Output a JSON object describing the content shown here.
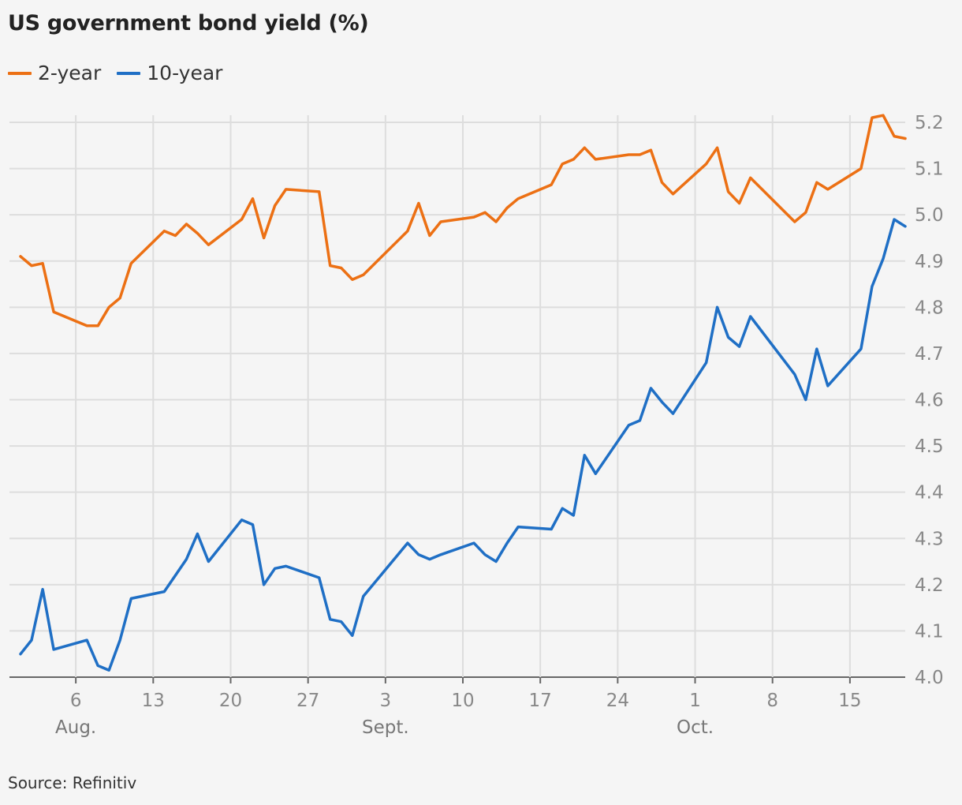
{
  "title": "US government bond yield (%)",
  "source": "Source: Refinitiv",
  "legend": [
    {
      "label": "2-year",
      "color": "#ec7014"
    },
    {
      "label": "10-year",
      "color": "#1f6fc5"
    }
  ],
  "chart_data": {
    "type": "line",
    "title": "US government bond yield (%)",
    "xlabel": "",
    "ylabel": "",
    "ylim": [
      4.0,
      5.2
    ],
    "y_ticks": [
      "4.0",
      "4.1",
      "4.2",
      "4.3",
      "4.4",
      "4.5",
      "4.6",
      "4.7",
      "4.8",
      "4.9",
      "5.0",
      "5.1",
      "5.2"
    ],
    "y_axis_position": "right",
    "grid": true,
    "legend_position": "top-left",
    "x_ticks": [
      {
        "date": "2023-08-06",
        "label": "6",
        "month": "Aug."
      },
      {
        "date": "2023-08-13",
        "label": "13",
        "month": ""
      },
      {
        "date": "2023-08-20",
        "label": "20",
        "month": ""
      },
      {
        "date": "2023-08-27",
        "label": "27",
        "month": ""
      },
      {
        "date": "2023-09-03",
        "label": "3",
        "month": "Sept."
      },
      {
        "date": "2023-09-10",
        "label": "10",
        "month": ""
      },
      {
        "date": "2023-09-17",
        "label": "17",
        "month": ""
      },
      {
        "date": "2023-09-24",
        "label": "24",
        "month": ""
      },
      {
        "date": "2023-10-01",
        "label": "1",
        "month": "Oct."
      },
      {
        "date": "2023-10-08",
        "label": "8",
        "month": ""
      },
      {
        "date": "2023-10-15",
        "label": "15",
        "month": ""
      }
    ],
    "xlim": [
      "2023-07-31",
      "2023-10-20"
    ],
    "series": [
      {
        "name": "2-year",
        "color": "#ec7014",
        "points": [
          [
            "2023-08-01",
            4.91
          ],
          [
            "2023-08-02",
            4.89
          ],
          [
            "2023-08-03",
            4.895
          ],
          [
            "2023-08-04",
            4.79
          ],
          [
            "2023-08-07",
            4.76
          ],
          [
            "2023-08-08",
            4.76
          ],
          [
            "2023-08-09",
            4.8
          ],
          [
            "2023-08-10",
            4.82
          ],
          [
            "2023-08-11",
            4.895
          ],
          [
            "2023-08-14",
            4.965
          ],
          [
            "2023-08-15",
            4.955
          ],
          [
            "2023-08-16",
            4.98
          ],
          [
            "2023-08-17",
            4.96
          ],
          [
            "2023-08-18",
            4.935
          ],
          [
            "2023-08-21",
            4.99
          ],
          [
            "2023-08-22",
            5.035
          ],
          [
            "2023-08-23",
            4.95
          ],
          [
            "2023-08-24",
            5.02
          ],
          [
            "2023-08-25",
            5.055
          ],
          [
            "2023-08-28",
            5.05
          ],
          [
            "2023-08-29",
            4.89
          ],
          [
            "2023-08-30",
            4.885
          ],
          [
            "2023-08-31",
            4.86
          ],
          [
            "2023-09-01",
            4.87
          ],
          [
            "2023-09-05",
            4.965
          ],
          [
            "2023-09-06",
            5.025
          ],
          [
            "2023-09-07",
            4.955
          ],
          [
            "2023-09-08",
            4.985
          ],
          [
            "2023-09-11",
            4.995
          ],
          [
            "2023-09-12",
            5.005
          ],
          [
            "2023-09-13",
            4.985
          ],
          [
            "2023-09-14",
            5.015
          ],
          [
            "2023-09-15",
            5.035
          ],
          [
            "2023-09-18",
            5.065
          ],
          [
            "2023-09-19",
            5.11
          ],
          [
            "2023-09-20",
            5.12
          ],
          [
            "2023-09-21",
            5.145
          ],
          [
            "2023-09-22",
            5.12
          ],
          [
            "2023-09-25",
            5.13
          ],
          [
            "2023-09-26",
            5.13
          ],
          [
            "2023-09-27",
            5.14
          ],
          [
            "2023-09-28",
            5.07
          ],
          [
            "2023-09-29",
            5.045
          ],
          [
            "2023-10-02",
            5.11
          ],
          [
            "2023-10-03",
            5.145
          ],
          [
            "2023-10-04",
            5.05
          ],
          [
            "2023-10-05",
            5.025
          ],
          [
            "2023-10-06",
            5.08
          ],
          [
            "2023-10-10",
            4.985
          ],
          [
            "2023-10-11",
            5.005
          ],
          [
            "2023-10-12",
            5.07
          ],
          [
            "2023-10-13",
            5.055
          ],
          [
            "2023-10-16",
            5.1
          ],
          [
            "2023-10-17",
            5.21
          ],
          [
            "2023-10-18",
            5.215
          ],
          [
            "2023-10-19",
            5.17
          ],
          [
            "2023-10-20",
            5.165
          ]
        ]
      },
      {
        "name": "10-year",
        "color": "#1f6fc5",
        "points": [
          [
            "2023-08-01",
            4.05
          ],
          [
            "2023-08-02",
            4.08
          ],
          [
            "2023-08-03",
            4.19
          ],
          [
            "2023-08-04",
            4.06
          ],
          [
            "2023-08-07",
            4.08
          ],
          [
            "2023-08-08",
            4.025
          ],
          [
            "2023-08-09",
            4.015
          ],
          [
            "2023-08-10",
            4.08
          ],
          [
            "2023-08-11",
            4.17
          ],
          [
            "2023-08-14",
            4.185
          ],
          [
            "2023-08-15",
            4.22
          ],
          [
            "2023-08-16",
            4.255
          ],
          [
            "2023-08-17",
            4.31
          ],
          [
            "2023-08-18",
            4.25
          ],
          [
            "2023-08-21",
            4.34
          ],
          [
            "2023-08-22",
            4.33
          ],
          [
            "2023-08-23",
            4.2
          ],
          [
            "2023-08-24",
            4.235
          ],
          [
            "2023-08-25",
            4.24
          ],
          [
            "2023-08-28",
            4.215
          ],
          [
            "2023-08-29",
            4.125
          ],
          [
            "2023-08-30",
            4.12
          ],
          [
            "2023-08-31",
            4.09
          ],
          [
            "2023-09-01",
            4.175
          ],
          [
            "2023-09-05",
            4.29
          ],
          [
            "2023-09-06",
            4.265
          ],
          [
            "2023-09-07",
            4.255
          ],
          [
            "2023-09-08",
            4.265
          ],
          [
            "2023-09-11",
            4.29
          ],
          [
            "2023-09-12",
            4.265
          ],
          [
            "2023-09-13",
            4.25
          ],
          [
            "2023-09-14",
            4.29
          ],
          [
            "2023-09-15",
            4.325
          ],
          [
            "2023-09-18",
            4.32
          ],
          [
            "2023-09-19",
            4.365
          ],
          [
            "2023-09-20",
            4.35
          ],
          [
            "2023-09-21",
            4.48
          ],
          [
            "2023-09-22",
            4.44
          ],
          [
            "2023-09-25",
            4.545
          ],
          [
            "2023-09-26",
            4.555
          ],
          [
            "2023-09-27",
            4.625
          ],
          [
            "2023-09-28",
            4.595
          ],
          [
            "2023-09-29",
            4.57
          ],
          [
            "2023-10-02",
            4.68
          ],
          [
            "2023-10-03",
            4.8
          ],
          [
            "2023-10-04",
            4.735
          ],
          [
            "2023-10-05",
            4.715
          ],
          [
            "2023-10-06",
            4.78
          ],
          [
            "2023-10-10",
            4.655
          ],
          [
            "2023-10-11",
            4.6
          ],
          [
            "2023-10-12",
            4.71
          ],
          [
            "2023-10-13",
            4.63
          ],
          [
            "2023-10-16",
            4.71
          ],
          [
            "2023-10-17",
            4.845
          ],
          [
            "2023-10-18",
            4.905
          ],
          [
            "2023-10-19",
            4.99
          ],
          [
            "2023-10-20",
            4.975
          ]
        ]
      }
    ]
  }
}
